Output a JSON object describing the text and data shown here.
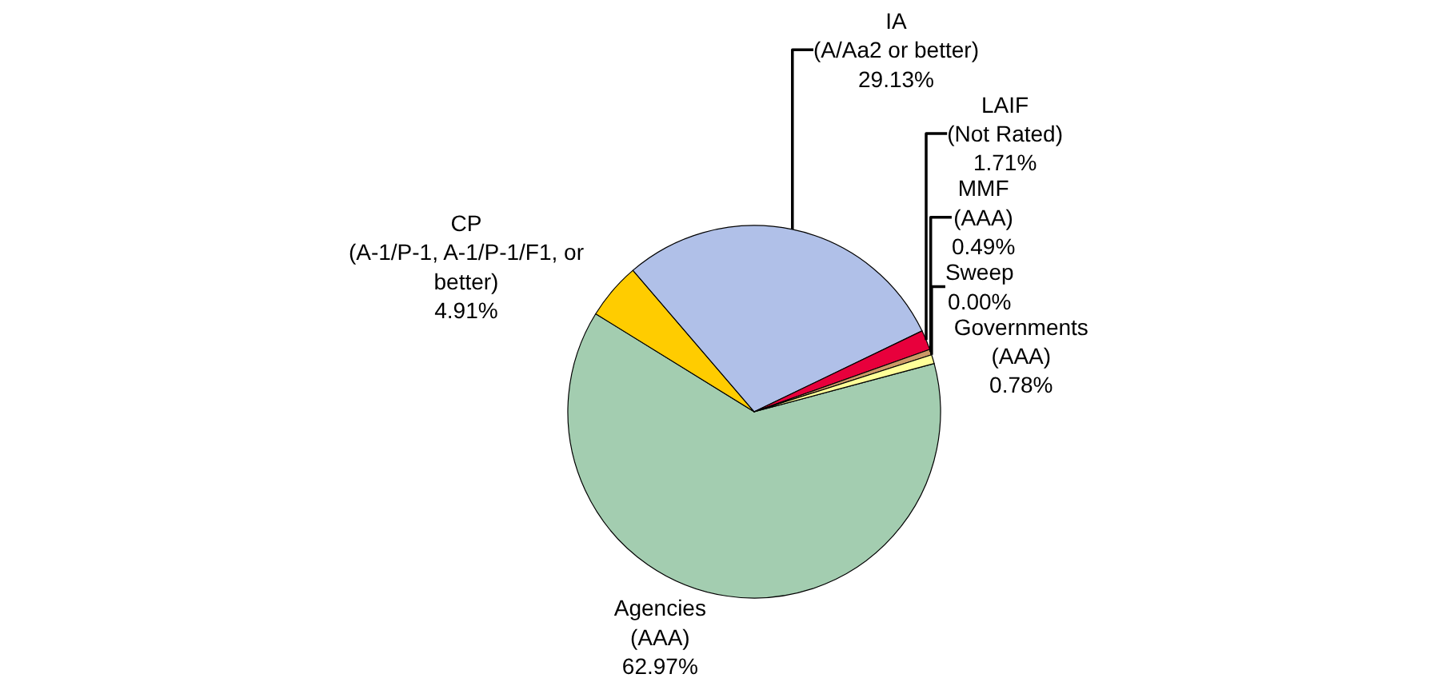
{
  "chart_data": {
    "type": "pie",
    "categories": [
      "Agencies\n(AAA)",
      "CP\n(A-1/P-1, A-1/P-1/F1, or\nbetter)",
      "IA\n(A/Aa2 or better)",
      "LAIF\n(Not Rated)",
      "MMF\n(AAA)",
      "Sweep",
      "Governments\n(AAA)"
    ],
    "values": [
      62.97,
      4.91,
      29.13,
      1.71,
      0.49,
      0.0,
      0.78
    ],
    "value_labels": [
      "62.97%",
      "4.91%",
      "29.13%",
      "1.71%",
      "0.49%",
      "0.00%",
      "0.78%"
    ],
    "colors": [
      "#a3cdb0",
      "#ffcc00",
      "#b0c0e8",
      "#e8003c",
      "#cc9966",
      "#999999",
      "#ffff99"
    ],
    "legend": false
  }
}
